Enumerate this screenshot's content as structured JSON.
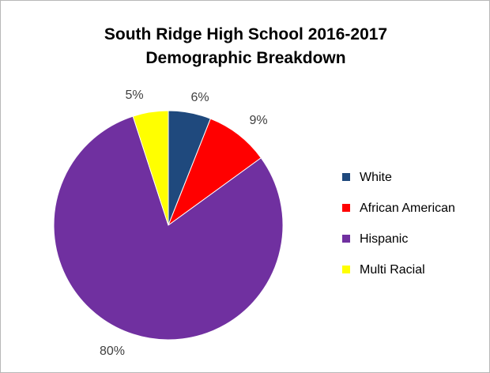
{
  "chart_data": {
    "type": "pie",
    "title": "South Ridge High School 2016-2017",
    "subtitle": "Demographic Breakdown",
    "categories": [
      "White",
      "African American",
      "Hispanic",
      "Multi Racial"
    ],
    "values": [
      6,
      9,
      80,
      5
    ],
    "data_labels": [
      "6%",
      "9%",
      "80%",
      "5%"
    ],
    "colors": [
      "#1f497d",
      "#ff0000",
      "#7030a0",
      "#ffff00"
    ],
    "legend_position": "right",
    "start_angle": "12 o'clock",
    "direction": "clockwise"
  }
}
